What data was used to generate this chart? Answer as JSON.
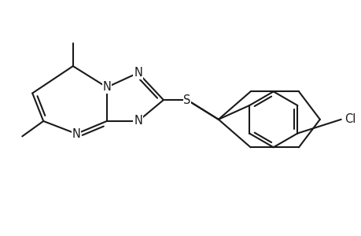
{
  "background_color": "#ffffff",
  "line_color": "#1a1a1a",
  "line_width": 1.5,
  "font_size": 10.5,
  "figsize": [
    4.6,
    3.0
  ],
  "dpi": 100,
  "xlim": [
    -0.3,
    9.8
  ],
  "ylim": [
    1.2,
    6.0
  ]
}
